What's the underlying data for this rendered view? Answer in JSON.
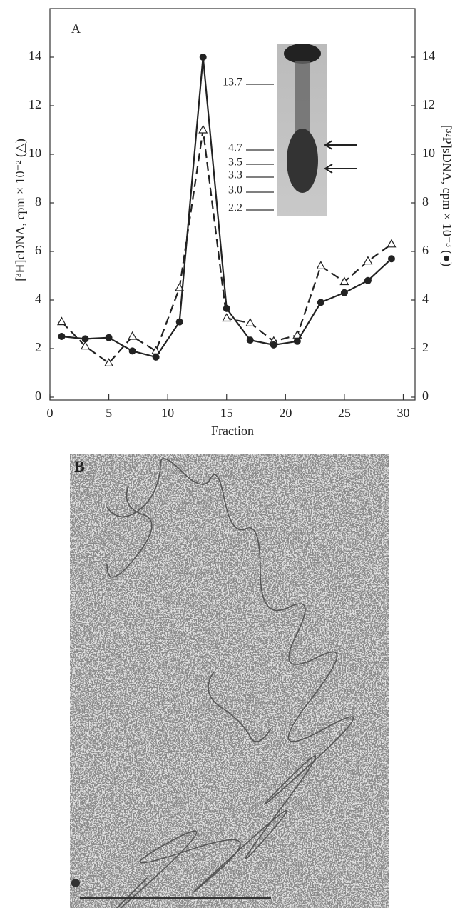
{
  "chart_data": {
    "type": "line",
    "panel_label": "A",
    "x_label": "Fraction",
    "y_label": "[³H]cDNA, cpm × 10⁻² (△)",
    "y2_label": "[³²P]sDNA, cpm × 10⁻³ (●)",
    "x": [
      1,
      3,
      5,
      7,
      9,
      11,
      13,
      15,
      17,
      19,
      21,
      23,
      25,
      27,
      29
    ],
    "series": [
      {
        "color": "#222",
        "marker": "triangle",
        "dashed": true,
        "axis": "y",
        "values": [
          3.1,
          2.1,
          1.4,
          2.5,
          1.9,
          4.5,
          11,
          3.25,
          3.05,
          2.3,
          2.55,
          5.4,
          4.75,
          5.6,
          6.3
        ]
      },
      {
        "color": "#222",
        "marker": "circle",
        "dashed": false,
        "axis": "y2",
        "values": [
          2.5,
          2.4,
          2.45,
          1.9,
          1.65,
          3.1,
          14,
          3.65,
          2.35,
          2.15,
          2.3,
          3.9,
          4.3,
          4.8,
          5.7
        ]
      }
    ],
    "xlim": [
      0,
      31
    ],
    "xticks": [
      0,
      5,
      10,
      15,
      20,
      25,
      30
    ],
    "ylim": [
      0,
      16
    ],
    "yticks": [
      0,
      2,
      4,
      6,
      8,
      10,
      12,
      14
    ],
    "y2lim": [
      0,
      16
    ],
    "y2ticks": [
      0,
      2,
      4,
      6,
      8,
      10,
      12,
      14
    ],
    "gel_markers": [
      "13.7",
      "4.7",
      "3.5",
      "3.3",
      "3.0",
      "2.2"
    ]
  },
  "panel_b": {
    "label": "B"
  }
}
